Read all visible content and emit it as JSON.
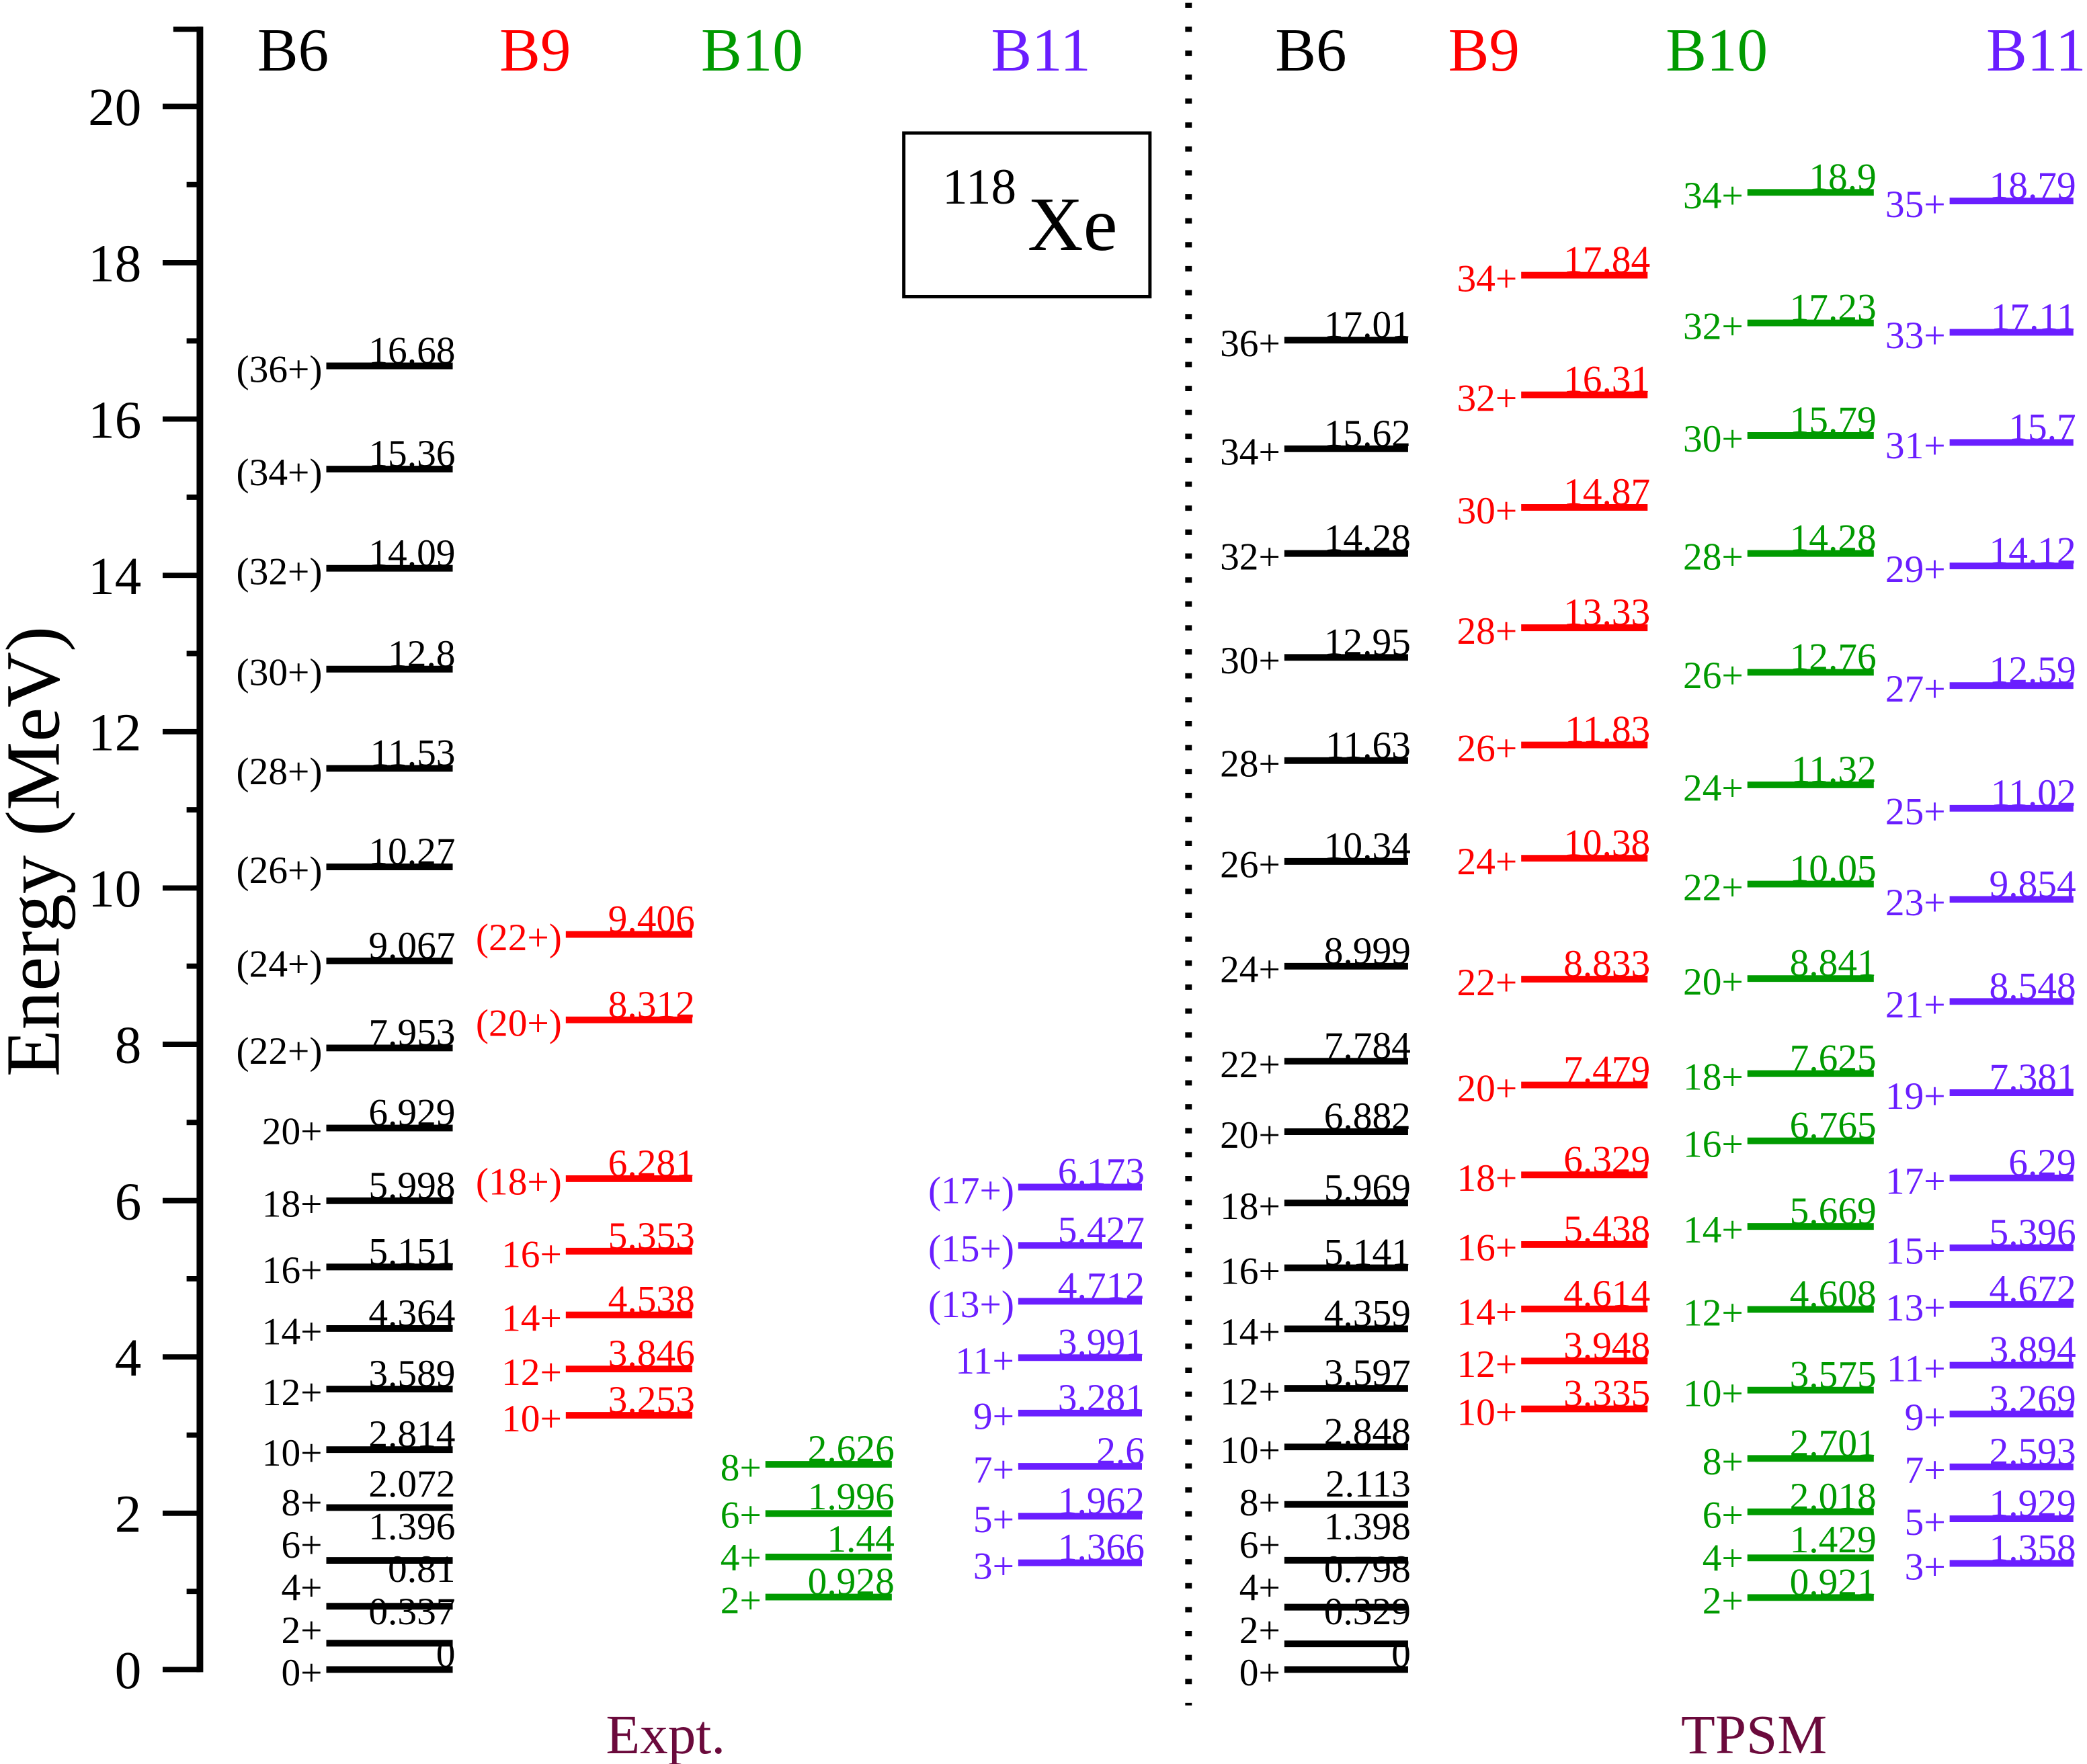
{
  "chart_data": {
    "type": "level-scheme",
    "nucleus": {
      "mass": "118",
      "symbol": "Xe"
    },
    "ylabel": "Energy (MeV)",
    "ylim": [
      0,
      20
    ],
    "yticks": [
      "0",
      "2",
      "4",
      "6",
      "8",
      "10",
      "12",
      "14",
      "16",
      "18",
      "20"
    ],
    "colors": {
      "B6": "#000000",
      "B9": "#ff0000",
      "B10": "#009a00",
      "B11": "#6a1eff",
      "panel_label": "#6b0a3c"
    },
    "panels": [
      {
        "label": "Expt.",
        "bands": [
          {
            "name": "B6",
            "levels": [
              {
                "spin": "(36+)",
                "energy": "16.68"
              },
              {
                "spin": "(34+)",
                "energy": "15.36"
              },
              {
                "spin": "(32+)",
                "energy": "14.09"
              },
              {
                "spin": "(30+)",
                "energy": "12.8"
              },
              {
                "spin": "(28+)",
                "energy": "11.53"
              },
              {
                "spin": "(26+)",
                "energy": "10.27"
              },
              {
                "spin": "(24+)",
                "energy": "9.067"
              },
              {
                "spin": "(22+)",
                "energy": "7.953"
              },
              {
                "spin": "20+",
                "energy": "6.929"
              },
              {
                "spin": "18+",
                "energy": "5.998"
              },
              {
                "spin": "16+",
                "energy": "5.151"
              },
              {
                "spin": "14+",
                "energy": "4.364"
              },
              {
                "spin": "12+",
                "energy": "3.589"
              },
              {
                "spin": "10+",
                "energy": "2.814"
              },
              {
                "spin": "8+",
                "energy": "2.072"
              },
              {
                "spin": "6+",
                "energy": "1.396"
              },
              {
                "spin": "4+",
                "energy": "0.81"
              },
              {
                "spin": "2+",
                "energy": "0.337"
              },
              {
                "spin": "0+",
                "energy": "0"
              }
            ]
          },
          {
            "name": "B9",
            "levels": [
              {
                "spin": "(22+)",
                "energy": "9.406"
              },
              {
                "spin": "(20+)",
                "energy": "8.312"
              },
              {
                "spin": "(18+)",
                "energy": "6.281"
              },
              {
                "spin": "16+",
                "energy": "5.353"
              },
              {
                "spin": "14+",
                "energy": "4.538"
              },
              {
                "spin": "12+",
                "energy": "3.846"
              },
              {
                "spin": "10+",
                "energy": "3.253"
              }
            ]
          },
          {
            "name": "B10",
            "levels": [
              {
                "spin": "8+",
                "energy": "2.626"
              },
              {
                "spin": "6+",
                "energy": "1.996"
              },
              {
                "spin": "4+",
                "energy": "1.44"
              },
              {
                "spin": "2+",
                "energy": "0.928"
              }
            ]
          },
          {
            "name": "B11",
            "levels": [
              {
                "spin": "(17+)",
                "energy": "6.173"
              },
              {
                "spin": "(15+)",
                "energy": "5.427"
              },
              {
                "spin": "(13+)",
                "energy": "4.712"
              },
              {
                "spin": "11+",
                "energy": "3.991"
              },
              {
                "spin": "9+",
                "energy": "3.281"
              },
              {
                "spin": "7+",
                "energy": "2.6"
              },
              {
                "spin": "5+",
                "energy": "1.962"
              },
              {
                "spin": "3+",
                "energy": "1.366"
              }
            ]
          }
        ]
      },
      {
        "label": "TPSM",
        "bands": [
          {
            "name": "B6",
            "levels": [
              {
                "spin": "36+",
                "energy": "17.01"
              },
              {
                "spin": "34+",
                "energy": "15.62"
              },
              {
                "spin": "32+",
                "energy": "14.28"
              },
              {
                "spin": "30+",
                "energy": "12.95"
              },
              {
                "spin": "28+",
                "energy": "11.63"
              },
              {
                "spin": "26+",
                "energy": "10.34"
              },
              {
                "spin": "24+",
                "energy": "8.999"
              },
              {
                "spin": "22+",
                "energy": "7.784"
              },
              {
                "spin": "20+",
                "energy": "6.882"
              },
              {
                "spin": "18+",
                "energy": "5.969"
              },
              {
                "spin": "16+",
                "energy": "5.141"
              },
              {
                "spin": "14+",
                "energy": "4.359"
              },
              {
                "spin": "12+",
                "energy": "3.597"
              },
              {
                "spin": "10+",
                "energy": "2.848"
              },
              {
                "spin": "8+",
                "energy": "2.113"
              },
              {
                "spin": "6+",
                "energy": "1.398"
              },
              {
                "spin": "4+",
                "energy": "0.798"
              },
              {
                "spin": "2+",
                "energy": "0.329"
              },
              {
                "spin": "0+",
                "energy": "0"
              }
            ]
          },
          {
            "name": "B9",
            "levels": [
              {
                "spin": "34+",
                "energy": "17.84"
              },
              {
                "spin": "32+",
                "energy": "16.31"
              },
              {
                "spin": "30+",
                "energy": "14.87"
              },
              {
                "spin": "28+",
                "energy": "13.33"
              },
              {
                "spin": "26+",
                "energy": "11.83"
              },
              {
                "spin": "24+",
                "energy": "10.38"
              },
              {
                "spin": "22+",
                "energy": "8.833"
              },
              {
                "spin": "20+",
                "energy": "7.479"
              },
              {
                "spin": "18+",
                "energy": "6.329"
              },
              {
                "spin": "16+",
                "energy": "5.438"
              },
              {
                "spin": "14+",
                "energy": "4.614"
              },
              {
                "spin": "12+",
                "energy": "3.948"
              },
              {
                "spin": "10+",
                "energy": "3.335"
              }
            ]
          },
          {
            "name": "B10",
            "levels": [
              {
                "spin": "34+",
                "energy": "18.9"
              },
              {
                "spin": "32+",
                "energy": "17.23"
              },
              {
                "spin": "30+",
                "energy": "15.79"
              },
              {
                "spin": "28+",
                "energy": "14.28"
              },
              {
                "spin": "26+",
                "energy": "12.76"
              },
              {
                "spin": "24+",
                "energy": "11.32"
              },
              {
                "spin": "22+",
                "energy": "10.05"
              },
              {
                "spin": "20+",
                "energy": "8.841"
              },
              {
                "spin": "18+",
                "energy": "7.625"
              },
              {
                "spin": "16+",
                "energy": "6.765"
              },
              {
                "spin": "14+",
                "energy": "5.669"
              },
              {
                "spin": "12+",
                "energy": "4.608"
              },
              {
                "spin": "10+",
                "energy": "3.575"
              },
              {
                "spin": "8+",
                "energy": "2.701"
              },
              {
                "spin": "6+",
                "energy": "2.018"
              },
              {
                "spin": "4+",
                "energy": "1.429"
              },
              {
                "spin": "2+",
                "energy": "0.921"
              }
            ]
          },
          {
            "name": "B11",
            "levels": [
              {
                "spin": "35+",
                "energy": "18.79"
              },
              {
                "spin": "33+",
                "energy": "17.11"
              },
              {
                "spin": "31+",
                "energy": "15.7"
              },
              {
                "spin": "29+",
                "energy": "14.12"
              },
              {
                "spin": "27+",
                "energy": "12.59"
              },
              {
                "spin": "25+",
                "energy": "11.02"
              },
              {
                "spin": "23+",
                "energy": "9.854"
              },
              {
                "spin": "21+",
                "energy": "8.548"
              },
              {
                "spin": "19+",
                "energy": "7.381"
              },
              {
                "spin": "17+",
                "energy": "6.29"
              },
              {
                "spin": "15+",
                "energy": "5.396"
              },
              {
                "spin": "13+",
                "energy": "4.672"
              },
              {
                "spin": "11+",
                "energy": "3.894"
              },
              {
                "spin": "9+",
                "energy": "3.269"
              },
              {
                "spin": "7+",
                "energy": "2.593"
              },
              {
                "spin": "5+",
                "energy": "1.929"
              },
              {
                "spin": "3+",
                "energy": "1.358"
              }
            ]
          }
        ]
      }
    ]
  }
}
